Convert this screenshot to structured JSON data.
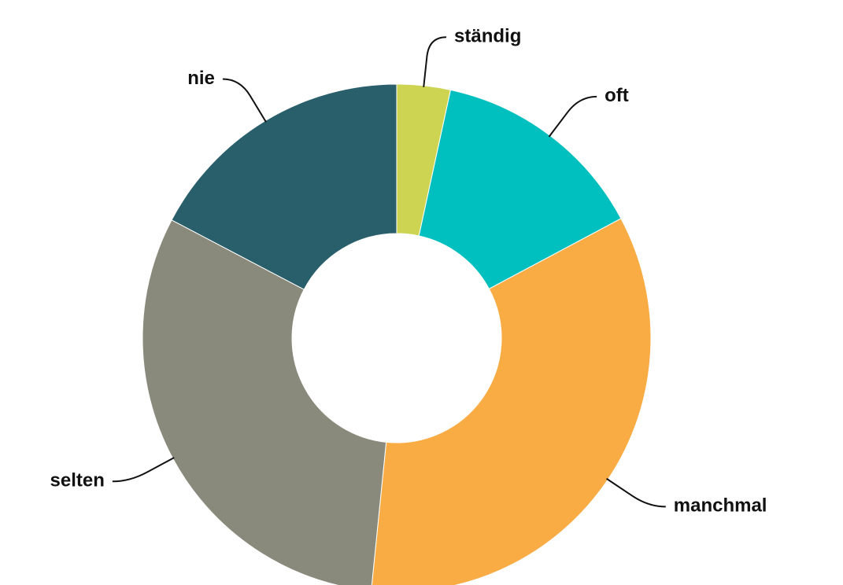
{
  "chart_data": {
    "type": "donut",
    "categories": [
      "ständig",
      "oft",
      "manchmal",
      "selten",
      "nie"
    ],
    "values": [
      3.4,
      13.8,
      34.4,
      31.1,
      17.3
    ],
    "colors": [
      "#cdd452",
      "#00bfbf",
      "#f9ac43",
      "#8a8a7c",
      "#285f6b"
    ]
  }
}
